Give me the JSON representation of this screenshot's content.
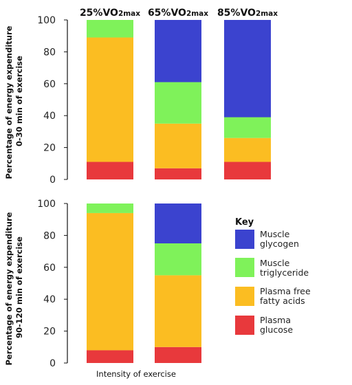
{
  "chart_data": [
    {
      "type": "bar",
      "stacked": true,
      "panel": "top",
      "ylabel_line1": "Percentage of energy expenditure",
      "ylabel_line2": "0-30 min of exercise",
      "ylim": [
        0,
        100
      ],
      "yticks": [
        "0",
        "20",
        "40",
        "60",
        "80",
        "100"
      ],
      "categories": [
        {
          "main": "25%VO",
          "sub": "2max"
        },
        {
          "main": "65%VO",
          "sub": "2max"
        },
        {
          "main": "85%VO",
          "sub": "2max"
        }
      ],
      "series": [
        {
          "name": "Plasma glucose",
          "color": "#e8393c",
          "values": [
            11,
            7,
            11
          ]
        },
        {
          "name": "Plasma free fatty acids",
          "color": "#fbbd22",
          "values": [
            78,
            28,
            15
          ]
        },
        {
          "name": "Muscle triglyceride",
          "color": "#7ff25a",
          "values": [
            11,
            26,
            13
          ]
        },
        {
          "name": "Muscle glycogen",
          "color": "#3b43cf",
          "values": [
            0,
            39,
            61
          ]
        }
      ]
    },
    {
      "type": "bar",
      "stacked": true,
      "panel": "bottom",
      "ylabel_line1": "Percentage of energy expenditure",
      "ylabel_line2": "90-120 min of exercise",
      "xlabel": "Intensity of exercise",
      "ylim": [
        0,
        100
      ],
      "yticks": [
        "0",
        "20",
        "40",
        "60",
        "80",
        "100"
      ],
      "categories": [
        "25%VO2max",
        "65%VO2max"
      ],
      "series": [
        {
          "name": "Plasma glucose",
          "color": "#e8393c",
          "values": [
            8,
            10
          ]
        },
        {
          "name": "Plasma free fatty acids",
          "color": "#fbbd22",
          "values": [
            86,
            45
          ]
        },
        {
          "name": "Muscle triglyceride",
          "color": "#7ff25a",
          "values": [
            6,
            20
          ]
        },
        {
          "name": "Muscle glycogen",
          "color": "#3b43cf",
          "values": [
            0,
            25
          ]
        }
      ]
    }
  ],
  "key": {
    "title": "Key",
    "items": [
      {
        "line1": "Muscle",
        "line2": "glycogen",
        "color": "#3b43cf"
      },
      {
        "line1": "Muscle",
        "line2": "triglyceride",
        "color": "#7ff25a"
      },
      {
        "line1": "Plasma free",
        "line2": "fatty acids",
        "color": "#fbbd22"
      },
      {
        "line1": "Plasma",
        "line2": "glucose",
        "color": "#e8393c"
      }
    ]
  }
}
